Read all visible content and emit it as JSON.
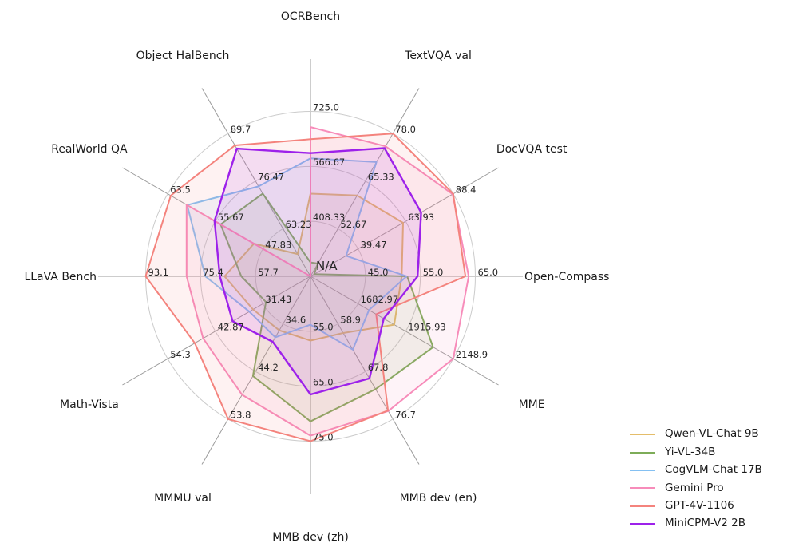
{
  "chart_data": {
    "type": "radar",
    "title": "",
    "center_label": "N/A",
    "grid": {
      "ring_color": "#cbcbcb",
      "spoke_color": "#9b9b9b",
      "rings": 3,
      "tick_label_color": "#262626",
      "axis_label_color": "#1a1a1a"
    },
    "legend_position": "bottom-right",
    "axes": [
      {
        "label": "OCRBench",
        "min": 250,
        "ticks": [
          408.33,
          566.67,
          725.0
        ],
        "tick_labels": [
          "408.33",
          "566.67",
          "725.0"
        ]
      },
      {
        "label": "TextVQA val",
        "min": 40,
        "ticks": [
          52.67,
          65.33,
          78.0
        ],
        "tick_labels": [
          "52.67",
          "65.33",
          "78.0"
        ]
      },
      {
        "label": "DocVQA test",
        "min": 15,
        "ticks": [
          39.47,
          63.93,
          88.4
        ],
        "tick_labels": [
          "39.47",
          "63.93",
          "88.4"
        ]
      },
      {
        "label": "Open-Compass",
        "min": 35,
        "ticks": [
          45.0,
          55.0,
          65.0
        ],
        "tick_labels": [
          "45.0",
          "55.0",
          "65.0"
        ]
      },
      {
        "label": "MME",
        "min": 1450,
        "ticks": [
          1682.97,
          1915.93,
          2148.9
        ],
        "tick_labels": [
          "1682.97",
          "1915.93",
          "2148.9"
        ]
      },
      {
        "label": "MMB dev (en)",
        "min": 50,
        "ticks": [
          58.9,
          67.8,
          76.7
        ],
        "tick_labels": [
          "58.9",
          "67.8",
          "76.7"
        ]
      },
      {
        "label": "MMB dev (zh)",
        "min": 45,
        "ticks": [
          55.0,
          65.0,
          75.0
        ],
        "tick_labels": [
          "55.0",
          "65.0",
          "75.0"
        ]
      },
      {
        "label": "MMMU val",
        "min": 25,
        "ticks": [
          34.6,
          44.2,
          53.8
        ],
        "tick_labels": [
          "34.6",
          "44.2",
          "53.8"
        ]
      },
      {
        "label": "Math-Vista",
        "min": 20,
        "ticks": [
          31.43,
          42.87,
          54.3
        ],
        "tick_labels": [
          "31.43",
          "42.87",
          "54.3"
        ]
      },
      {
        "label": "LLaVA Bench",
        "min": 40,
        "ticks": [
          57.7,
          75.4,
          93.1
        ],
        "tick_labels": [
          "57.7",
          "75.4",
          "93.1"
        ]
      },
      {
        "label": "RealWorld QA",
        "min": 40,
        "ticks": [
          47.83,
          55.67,
          63.5
        ],
        "tick_labels": [
          "47.83",
          "55.67",
          "63.5"
        ]
      },
      {
        "label": "Object HalBench",
        "min": 50,
        "ticks": [
          63.23,
          76.47,
          89.7
        ],
        "tick_labels": [
          "63.23",
          "76.47",
          "89.7"
        ]
      }
    ],
    "series": [
      {
        "name": "Qwen-VL-Chat 9B",
        "color": "#e4bd6a",
        "values": [
          488,
          61.5,
          62.6,
          51.6,
          1860.0,
          60.6,
          56.7,
          35.9,
          33.8,
          67.7,
          49.3,
          56.2
        ]
      },
      {
        "name": "Yi-VL-34B",
        "color": "#7dac58",
        "values": [
          290,
          43.4,
          16.9,
          52.6,
          2050.2,
          71.1,
          71.4,
          45.1,
          30.7,
          62.3,
          54.8,
          73.0
        ]
      },
      {
        "name": "CogVLM-Chat 17B",
        "color": "#84c0f2",
        "values": [
          590,
          70.4,
          33.3,
          52.5,
          1736.6,
          63.7,
          53.8,
          37.3,
          34.7,
          73.9,
          60.3,
          75.0
        ]
      },
      {
        "name": "Gemini Pro",
        "color": "#f78cba",
        "values": [
          680,
          74.6,
          88.1,
          63.8,
          2148.9,
          75.2,
          74.0,
          48.9,
          45.8,
          79.9,
          60.4,
          null
        ]
      },
      {
        "name": "GPT-4V-1106",
        "color": "#f4837d",
        "values": [
          645,
          78.0,
          88.4,
          63.2,
          1771.5,
          75.1,
          75.0,
          53.8,
          47.8,
          93.1,
          63.0,
          86.4
        ]
      },
      {
        "name": "MiniCPM-V2 2B",
        "color": "#9d21ea",
        "values": [
          605,
          74.1,
          71.9,
          54.5,
          1808.6,
          69.1,
          66.5,
          38.2,
          38.7,
          69.2,
          55.8,
          85.5
        ]
      }
    ]
  }
}
